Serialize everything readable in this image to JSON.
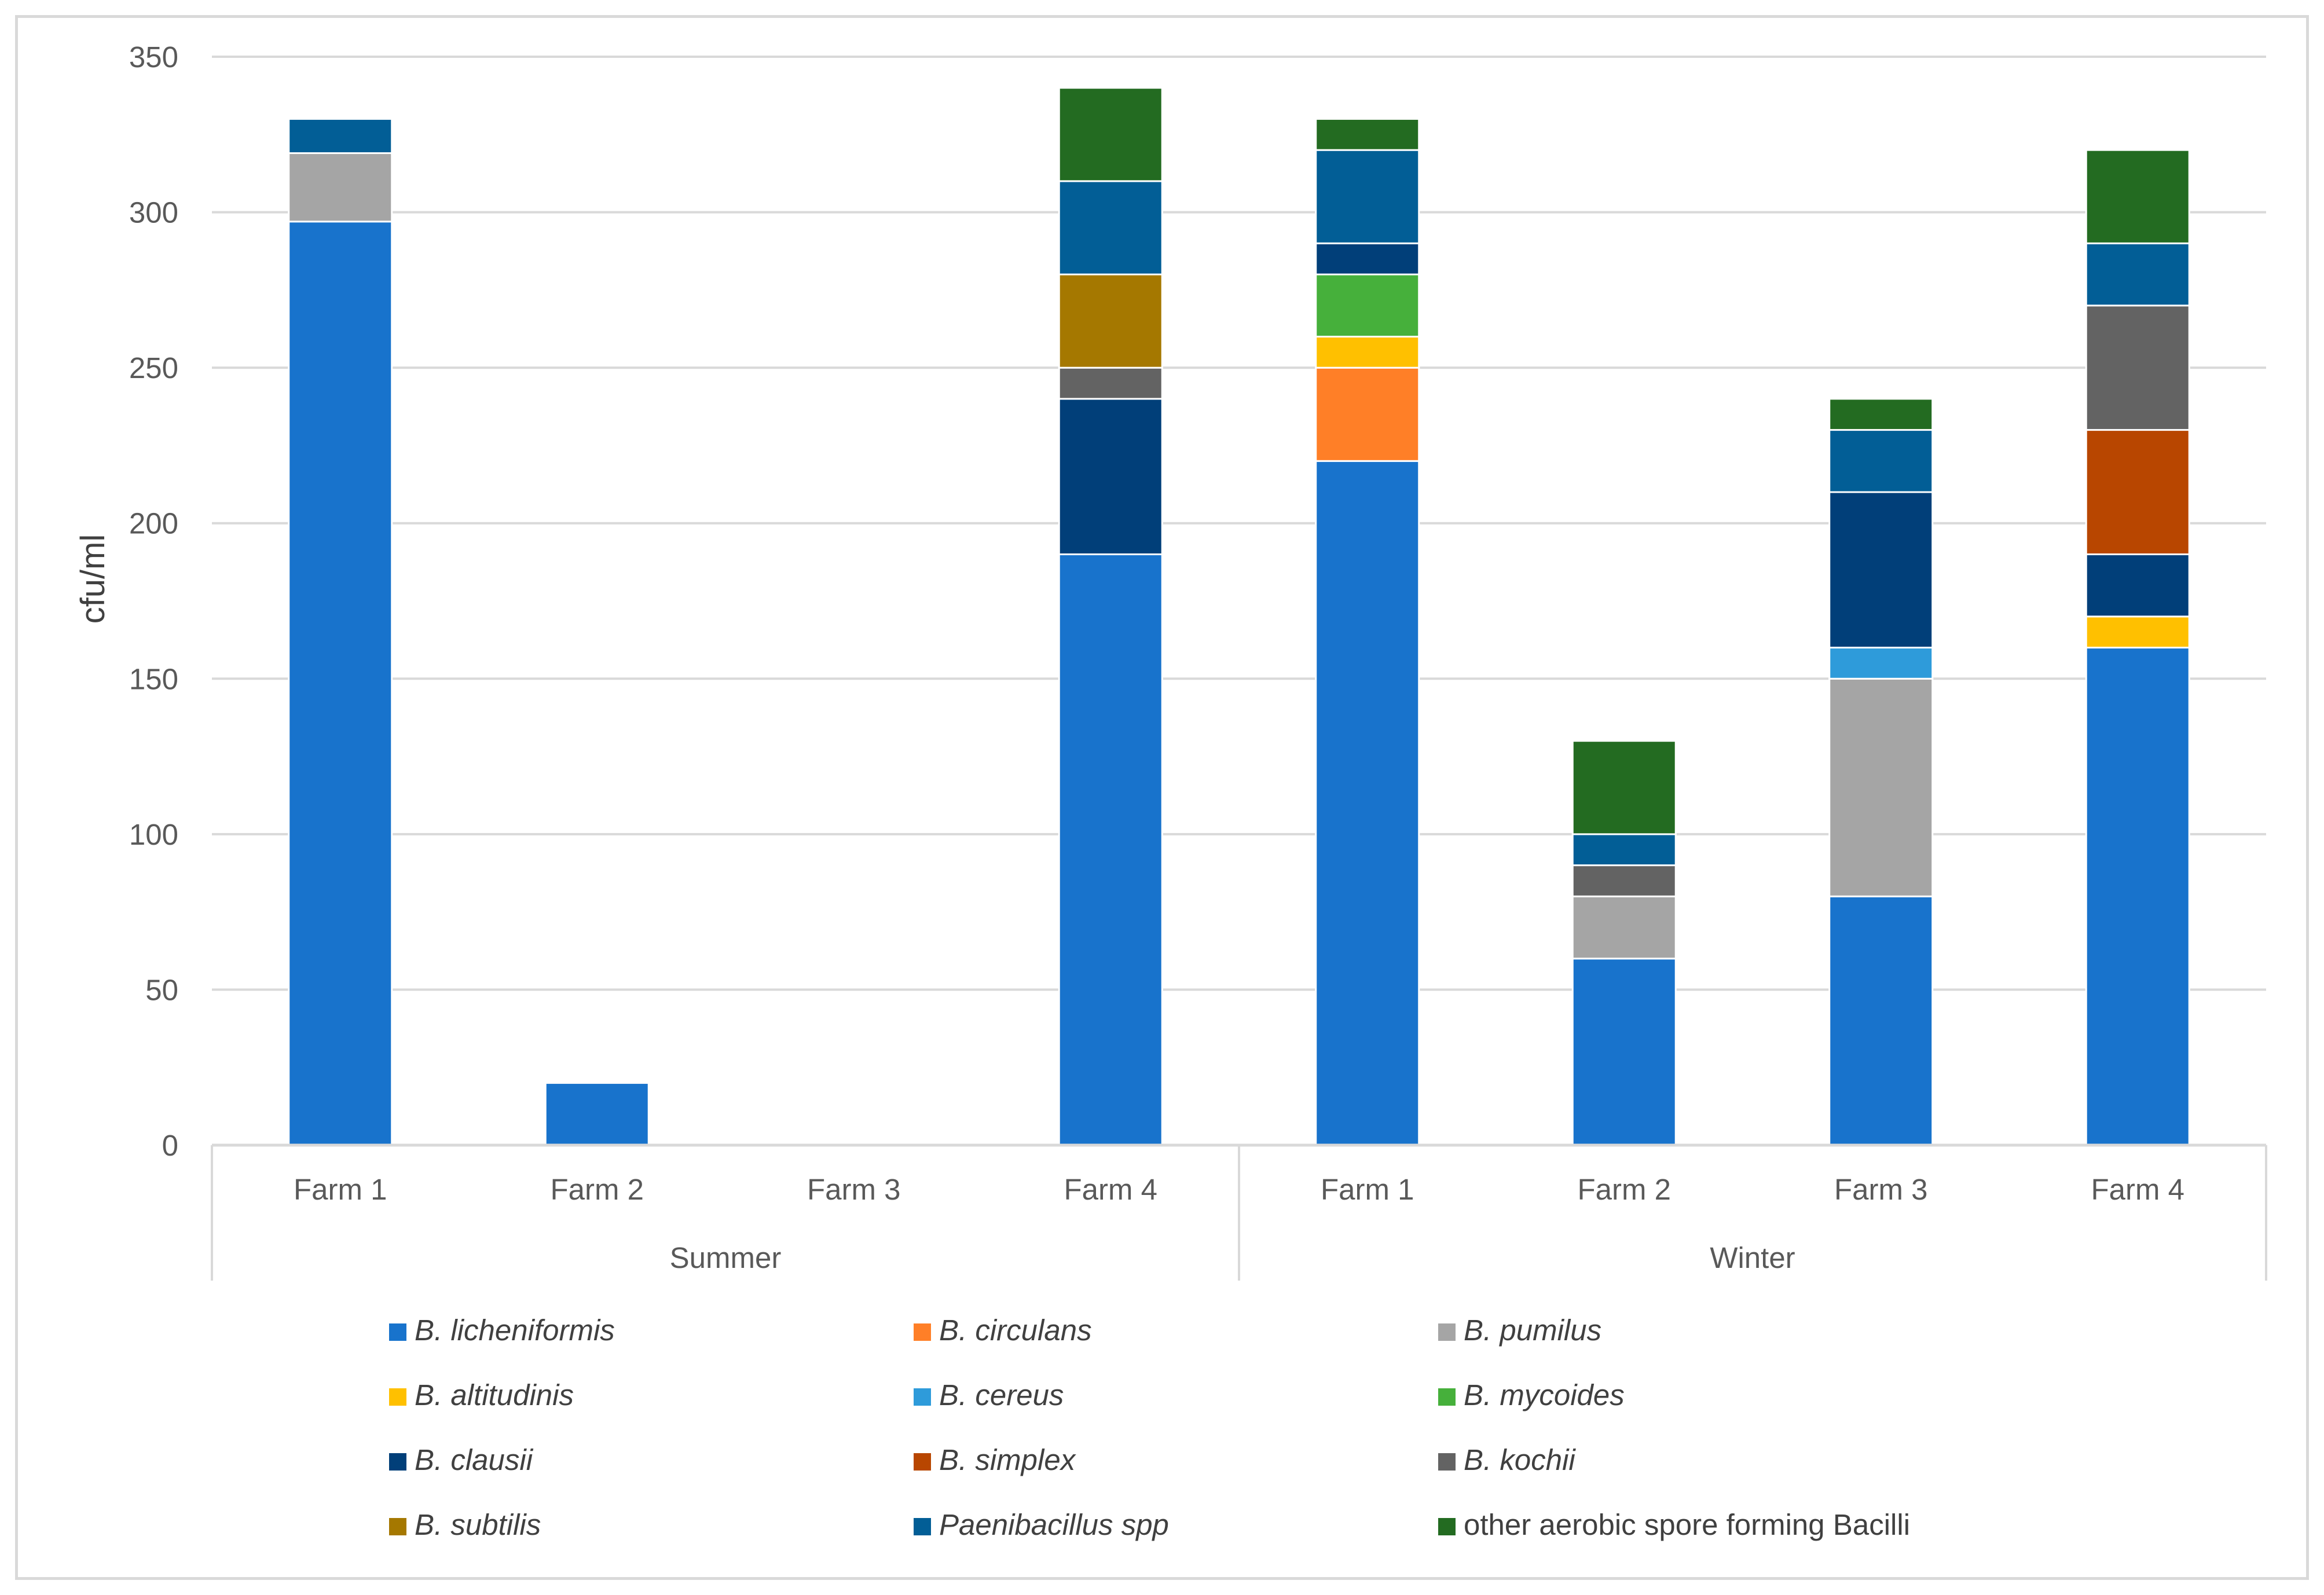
{
  "chart_data": {
    "type": "bar",
    "stacked": true,
    "title": "",
    "xlabel": "",
    "ylabel": "cfu/ml",
    "ylim": [
      0,
      350
    ],
    "yticks": [
      0,
      50,
      100,
      150,
      200,
      250,
      300,
      350
    ],
    "grid": true,
    "groups": [
      {
        "name": "Summer",
        "categories": [
          "Farm 1",
          "Farm 2",
          "Farm 3",
          "Farm 4"
        ]
      },
      {
        "name": "Winter",
        "categories": [
          "Farm 1",
          "Farm 2",
          "Farm 3",
          "Farm 4"
        ]
      }
    ],
    "categories": [
      "Farm 1",
      "Farm 2",
      "Farm 3",
      "Farm 4",
      "Farm 1",
      "Farm 2",
      "Farm 3",
      "Farm 4"
    ],
    "legend_position": "bottom",
    "series": [
      {
        "name": "B. licheniformis",
        "italic": true,
        "color": "#1873CC",
        "values": [
          297,
          20,
          0,
          190,
          220,
          60,
          80,
          160
        ]
      },
      {
        "name": "B. circulans",
        "italic": true,
        "color": "#FF7F27",
        "values": [
          0,
          0,
          0,
          0,
          30,
          0,
          0,
          0
        ]
      },
      {
        "name": "B. pumilus",
        "italic": true,
        "color": "#A5A5A5",
        "values": [
          22,
          0,
          0,
          0,
          0,
          20,
          70,
          0
        ]
      },
      {
        "name": "B. altitudinis",
        "italic": true,
        "color": "#FFC000",
        "values": [
          0,
          0,
          0,
          0,
          10,
          0,
          0,
          10
        ]
      },
      {
        "name": "B. cereus",
        "italic": true,
        "color": "#2E9BDA",
        "values": [
          0,
          0,
          0,
          0,
          0,
          0,
          10,
          0
        ]
      },
      {
        "name": "B. mycoides",
        "italic": true,
        "color": "#46B03B",
        "values": [
          0,
          0,
          0,
          0,
          20,
          0,
          0,
          0
        ]
      },
      {
        "name": "B. clausii",
        "italic": true,
        "color": "#013F79",
        "values": [
          0,
          0,
          0,
          50,
          10,
          0,
          50,
          20
        ]
      },
      {
        "name": "B. simplex",
        "italic": true,
        "color": "#B84600",
        "values": [
          0,
          0,
          0,
          0,
          0,
          0,
          0,
          40
        ]
      },
      {
        "name": "B. kochii",
        "italic": true,
        "color": "#636363",
        "values": [
          0,
          0,
          0,
          10,
          0,
          10,
          0,
          40
        ]
      },
      {
        "name": "B. subtilis",
        "italic": true,
        "color": "#A57800",
        "values": [
          0,
          0,
          0,
          30,
          0,
          0,
          0,
          0
        ]
      },
      {
        "name": "Paenibacillus spp",
        "italic": true,
        "color": "#025E96",
        "values": [
          11,
          0,
          0,
          30,
          30,
          10,
          20,
          20
        ]
      },
      {
        "name": "other aerobic spore forming Bacilli",
        "italic": false,
        "color": "#236B21",
        "values": [
          0,
          0,
          0,
          30,
          10,
          30,
          10,
          30
        ]
      }
    ]
  }
}
